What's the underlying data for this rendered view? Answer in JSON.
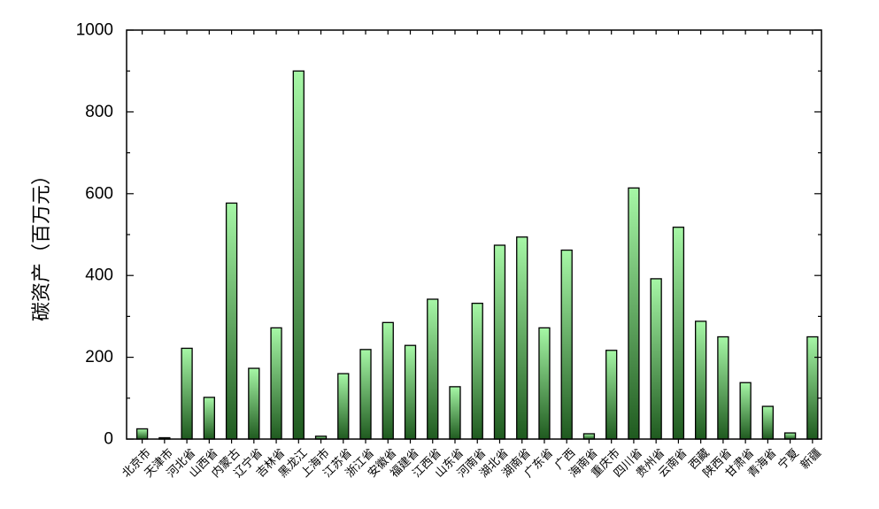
{
  "chart_data": {
    "type": "bar",
    "title": "",
    "xlabel": "",
    "ylabel": "碳资产（百万元）",
    "ylim": [
      0,
      1000
    ],
    "yticks": [
      0,
      200,
      400,
      600,
      800,
      1000
    ],
    "grid": false,
    "categories": [
      "北京市",
      "天津市",
      "河北省",
      "山西省",
      "内蒙古",
      "辽宁省",
      "吉林省",
      "黑龙江",
      "上海市",
      "江苏省",
      "浙江省",
      "安徽省",
      "福建省",
      "江西省",
      "山东省",
      "河南省",
      "湖北省",
      "湖南省",
      "广东省",
      "广西",
      "海南省",
      "重庆市",
      "四川省",
      "贵州省",
      "云南省",
      "西藏",
      "陕西省",
      "甘肃省",
      "青海省",
      "宁夏",
      "新疆"
    ],
    "values": [
      25,
      3,
      222,
      102,
      577,
      173,
      272,
      900,
      7,
      160,
      219,
      285,
      229,
      342,
      128,
      332,
      474,
      494,
      272,
      462,
      13,
      217,
      614,
      392,
      518,
      288,
      250,
      138,
      80,
      15,
      250
    ],
    "colors": {
      "bar_top": "#a6f7a6",
      "bar_bottom": "#1f5a1f",
      "axis": "#000000"
    }
  }
}
